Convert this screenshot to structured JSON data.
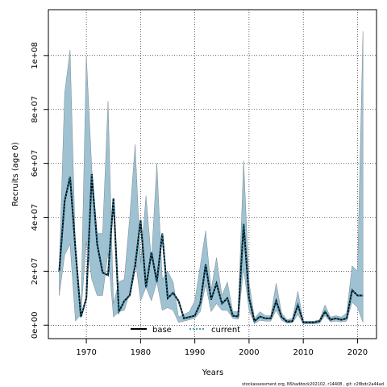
{
  "chart_data": {
    "type": "area",
    "xlabel": "Years",
    "ylabel": "Recruits (age 0)",
    "xlim": [
      1963,
      2023.5
    ],
    "ylim": [
      -5000000,
      117000000
    ],
    "x_ticks": [
      1970,
      1980,
      1990,
      2000,
      2010,
      2020
    ],
    "y_ticks": [
      0,
      20000000,
      40000000,
      60000000,
      80000000,
      100000000
    ],
    "y_tick_labels": [
      "0e+00",
      "2e+07",
      "4e+07",
      "6e+07",
      "8e+07",
      "1e+08"
    ],
    "grid": true,
    "legend_position": "bottom-center",
    "colors": {
      "band": "#9fc2d2",
      "band_stroke": "#7a8a90",
      "line": "#000000"
    },
    "x": [
      1965,
      1966,
      1967,
      1968,
      1969,
      1970,
      1971,
      1972,
      1973,
      1974,
      1975,
      1976,
      1977,
      1978,
      1979,
      1980,
      1981,
      1982,
      1983,
      1984,
      1985,
      1986,
      1987,
      1988,
      1989,
      1990,
      1991,
      1992,
      1993,
      1994,
      1995,
      1996,
      1997,
      1998,
      1999,
      2000,
      2001,
      2002,
      2003,
      2004,
      2005,
      2006,
      2007,
      2008,
      2009,
      2010,
      2011,
      2012,
      2013,
      2014,
      2015,
      2016,
      2017,
      2018,
      2019,
      2020,
      2021
    ],
    "series": [
      {
        "name": "base",
        "values": [
          20000000,
          46000000,
          55000000,
          28000000,
          3000000,
          10000000,
          56000000,
          30000000,
          19500000,
          18500000,
          47000000,
          5000000,
          9000000,
          11000000,
          22000000,
          39000000,
          14000000,
          27000000,
          16000000,
          34000000,
          10000000,
          12000000,
          9000000,
          2500000,
          3000000,
          3500000,
          8000000,
          22500000,
          9500000,
          15500000,
          8000000,
          10000000,
          3500000,
          3200000,
          37500000,
          10000000,
          1500000,
          3200000,
          2500000,
          2500000,
          9000000,
          3000000,
          1300000,
          1500000,
          7500000,
          1000000,
          1000000,
          1000000,
          1500000,
          5000000,
          2000000,
          2500000,
          2000000,
          2500000,
          13000000,
          11000000,
          11000000
        ]
      },
      {
        "name": "current",
        "values": [
          20000000,
          46000000,
          55000000,
          28000000,
          3000000,
          10000000,
          56000000,
          30000000,
          19500000,
          18500000,
          47000000,
          5000000,
          9000000,
          11000000,
          22000000,
          39000000,
          14000000,
          27000000,
          16000000,
          34000000,
          10000000,
          12000000,
          9000000,
          2500000,
          3000000,
          3500000,
          8000000,
          22500000,
          9500000,
          15500000,
          8000000,
          10000000,
          3500000,
          3200000,
          37500000,
          10000000,
          1500000,
          3200000,
          2500000,
          2500000,
          9000000,
          3000000,
          1300000,
          1500000,
          7500000,
          1000000,
          1000000,
          1000000,
          1500000,
          5000000,
          2000000,
          2500000,
          2000000,
          2500000,
          13000000,
          11000000,
          11000000
        ]
      }
    ],
    "band": {
      "upper": [
        21000000,
        86000000,
        102000000,
        28000000,
        5000000,
        100000000,
        58000000,
        34000000,
        34000000,
        83000000,
        8000000,
        16000000,
        17000000,
        40000000,
        67000000,
        23000000,
        48000000,
        24000000,
        60000000,
        17000000,
        20000000,
        16000000,
        3000000,
        4000000,
        5000000,
        9000000,
        22000000,
        35000000,
        13000000,
        25000000,
        11000000,
        16000000,
        5000000,
        5000000,
        61000000,
        16000000,
        2500000,
        5000000,
        3500000,
        3500000,
        15500000,
        4500000,
        2000000,
        2500000,
        12500000,
        1500000,
        1500000,
        1500000,
        2000000,
        7500000,
        3000000,
        3500000,
        3000000,
        4500000,
        22000000,
        20000000,
        109000000
      ],
      "lower": [
        11000000,
        26000000,
        30000000,
        1500000,
        4000000,
        31000000,
        17000000,
        11000000,
        11000000,
        27000000,
        3000000,
        5000000,
        5500000,
        12000000,
        25000000,
        9000000,
        14000000,
        9000000,
        16000000,
        5500000,
        6500000,
        5500000,
        1000000,
        1500000,
        2000000,
        2500000,
        5000000,
        15000000,
        5000000,
        8000000,
        5500000,
        5500000,
        2500000,
        2200000,
        21000000,
        5500000,
        500000,
        1800000,
        1500000,
        1500000,
        5500000,
        1800000,
        700000,
        900000,
        4000000,
        500000,
        500000,
        500000,
        700000,
        3500000,
        1200000,
        1500000,
        1200000,
        1500000,
        8500000,
        6500000,
        1000000
      ]
    }
  },
  "footer": "stockassessment.org, NShaddock202102, r14408 , git: c28bdc2a44ad"
}
